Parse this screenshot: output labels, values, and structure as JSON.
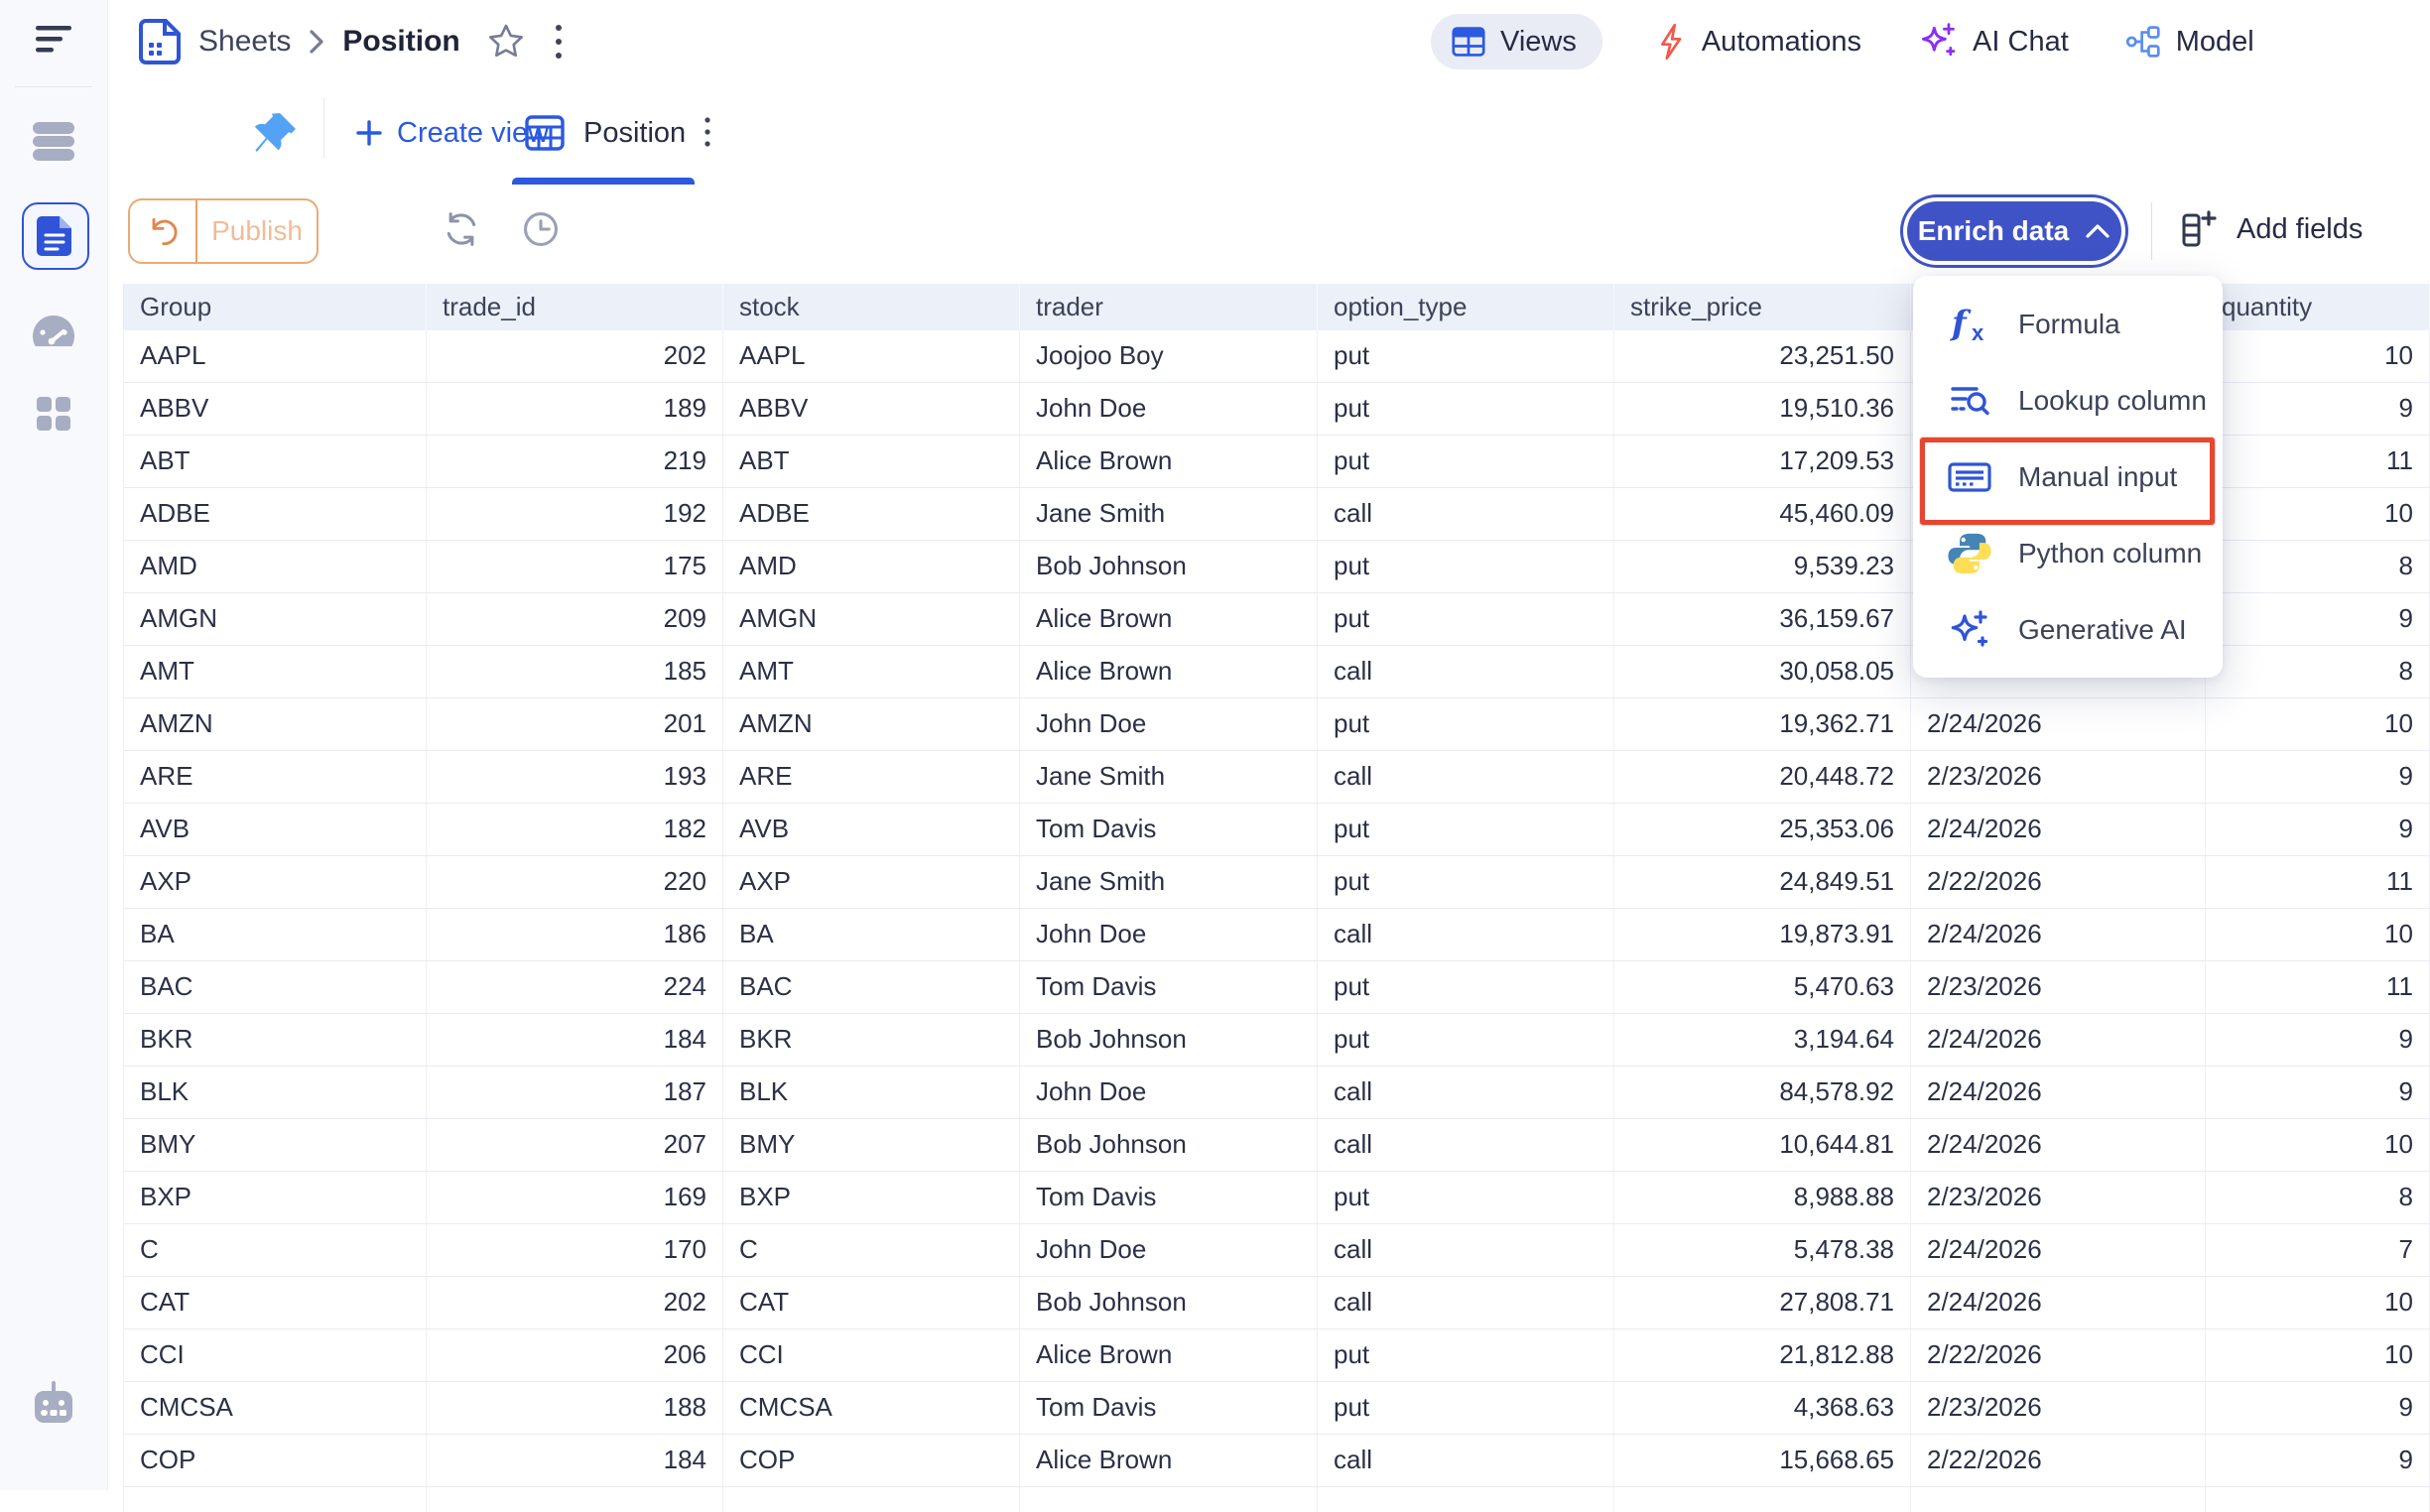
{
  "breadcrumb": {
    "root": "Sheets",
    "current": "Position"
  },
  "nav": {
    "views": "Views",
    "automations": "Automations",
    "ai_chat": "AI Chat",
    "model": "Model"
  },
  "tabs": {
    "create_view": "Create view",
    "active": "Position"
  },
  "toolbar": {
    "publish": "Publish",
    "enrich": "Enrich data",
    "add_fields": "Add fields"
  },
  "enrich_menu": {
    "items": [
      {
        "label": "Formula",
        "icon": "formula-icon",
        "annotated": false
      },
      {
        "label": "Lookup column",
        "icon": "lookup-column-icon",
        "annotated": false
      },
      {
        "label": "Manual input",
        "icon": "manual-input-icon",
        "annotated": true
      },
      {
        "label": "Python column",
        "icon": "python-icon",
        "annotated": false
      },
      {
        "label": "Generative AI",
        "icon": "generative-ai-icon",
        "annotated": false
      }
    ],
    "annotation_color": "#e54730"
  },
  "table": {
    "columns": [
      "Group",
      "trade_id",
      "stock",
      "trader",
      "option_type",
      "strike_price",
      "",
      "quantity"
    ],
    "rows": [
      [
        "AAPL",
        "202",
        "AAPL",
        "Joojoo Boy",
        "put",
        "23,251.50",
        "",
        "10"
      ],
      [
        "ABBV",
        "189",
        "ABBV",
        "John Doe",
        "put",
        "19,510.36",
        "",
        "9"
      ],
      [
        "ABT",
        "219",
        "ABT",
        "Alice Brown",
        "put",
        "17,209.53",
        "",
        "11"
      ],
      [
        "ADBE",
        "192",
        "ADBE",
        "Jane Smith",
        "call",
        "45,460.09",
        "",
        "10"
      ],
      [
        "AMD",
        "175",
        "AMD",
        "Bob Johnson",
        "put",
        "9,539.23",
        "",
        "8"
      ],
      [
        "AMGN",
        "209",
        "AMGN",
        "Alice Brown",
        "put",
        "36,159.67",
        "",
        "9"
      ],
      [
        "AMT",
        "185",
        "AMT",
        "Alice Brown",
        "call",
        "30,058.05",
        "",
        "8"
      ],
      [
        "AMZN",
        "201",
        "AMZN",
        "John Doe",
        "put",
        "19,362.71",
        "2/24/2026",
        "10"
      ],
      [
        "ARE",
        "193",
        "ARE",
        "Jane Smith",
        "call",
        "20,448.72",
        "2/23/2026",
        "9"
      ],
      [
        "AVB",
        "182",
        "AVB",
        "Tom Davis",
        "put",
        "25,353.06",
        "2/24/2026",
        "9"
      ],
      [
        "AXP",
        "220",
        "AXP",
        "Jane Smith",
        "put",
        "24,849.51",
        "2/22/2026",
        "11"
      ],
      [
        "BA",
        "186",
        "BA",
        "John Doe",
        "call",
        "19,873.91",
        "2/24/2026",
        "10"
      ],
      [
        "BAC",
        "224",
        "BAC",
        "Tom Davis",
        "put",
        "5,470.63",
        "2/23/2026",
        "11"
      ],
      [
        "BKR",
        "184",
        "BKR",
        "Bob Johnson",
        "put",
        "3,194.64",
        "2/24/2026",
        "9"
      ],
      [
        "BLK",
        "187",
        "BLK",
        "John Doe",
        "call",
        "84,578.92",
        "2/24/2026",
        "9"
      ],
      [
        "BMY",
        "207",
        "BMY",
        "Bob Johnson",
        "call",
        "10,644.81",
        "2/24/2026",
        "10"
      ],
      [
        "BXP",
        "169",
        "BXP",
        "Tom Davis",
        "put",
        "8,988.88",
        "2/23/2026",
        "8"
      ],
      [
        "C",
        "170",
        "C",
        "John Doe",
        "call",
        "5,478.38",
        "2/24/2026",
        "7"
      ],
      [
        "CAT",
        "202",
        "CAT",
        "Bob Johnson",
        "call",
        "27,808.71",
        "2/24/2026",
        "10"
      ],
      [
        "CCI",
        "206",
        "CCI",
        "Alice Brown",
        "put",
        "21,812.88",
        "2/22/2026",
        "10"
      ],
      [
        "CMCSA",
        "188",
        "CMCSA",
        "Tom Davis",
        "put",
        "4,368.63",
        "2/23/2026",
        "9"
      ],
      [
        "COP",
        "184",
        "COP",
        "Alice Brown",
        "call",
        "15,668.65",
        "2/22/2026",
        "9"
      ]
    ]
  },
  "colors": {
    "accent_blue": "#2f55d4",
    "button_blue": "#4053c6",
    "annotation_red": "#e54730",
    "publish_orange": "#eca772",
    "bolt_red": "#f2594b",
    "sparkle_purple": "#8b2ff0"
  }
}
